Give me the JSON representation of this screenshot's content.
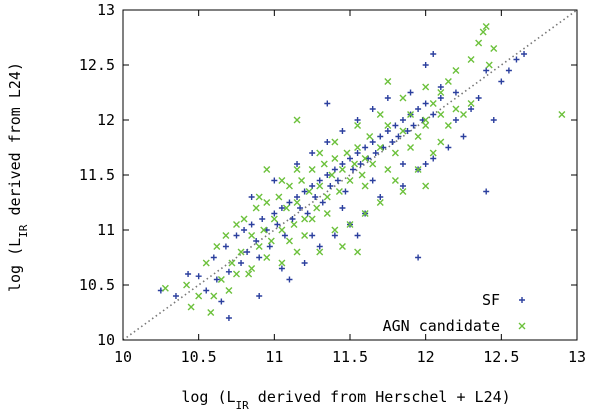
{
  "chart_data": {
    "type": "scatter",
    "title": "",
    "xlabel": {
      "pre": "log (L",
      "sub": "IR",
      "post": " derived from Herschel + L24)"
    },
    "ylabel": {
      "pre": "log (L",
      "sub": "IR",
      "post": " derived from L24)"
    },
    "xlim": [
      10,
      13
    ],
    "ylim": [
      10,
      13
    ],
    "xticks": [
      "10",
      "10.5",
      "11",
      "11.5",
      "12",
      "12.5",
      "13"
    ],
    "yticks": [
      "10",
      "10.5",
      "11",
      "11.5",
      "12",
      "12.5",
      "13"
    ],
    "grid": false,
    "legend_position": "bottom-right",
    "reference_line": {
      "style": "dotted",
      "from": [
        10,
        10
      ],
      "to": [
        13,
        13
      ],
      "color": "#777777"
    },
    "series": [
      {
        "name": "SF",
        "marker": "plus",
        "color": "#2b3f9e",
        "points": [
          [
            10.43,
            10.6
          ],
          [
            10.5,
            10.58
          ],
          [
            10.55,
            10.45
          ],
          [
            10.6,
            10.75
          ],
          [
            10.62,
            10.55
          ],
          [
            10.68,
            10.85
          ],
          [
            10.7,
            10.62
          ],
          [
            10.75,
            10.95
          ],
          [
            10.78,
            10.7
          ],
          [
            10.8,
            11.0
          ],
          [
            10.82,
            10.8
          ],
          [
            10.85,
            11.05
          ],
          [
            10.88,
            10.9
          ],
          [
            10.9,
            10.75
          ],
          [
            10.92,
            11.1
          ],
          [
            10.95,
            11.0
          ],
          [
            10.97,
            10.85
          ],
          [
            11.0,
            11.15
          ],
          [
            11.02,
            11.05
          ],
          [
            11.05,
            11.2
          ],
          [
            11.07,
            10.95
          ],
          [
            11.1,
            11.25
          ],
          [
            11.12,
            11.1
          ],
          [
            11.15,
            11.3
          ],
          [
            11.17,
            11.2
          ],
          [
            11.2,
            11.35
          ],
          [
            11.22,
            11.15
          ],
          [
            11.25,
            11.4
          ],
          [
            11.27,
            11.3
          ],
          [
            11.3,
            11.45
          ],
          [
            11.32,
            11.25
          ],
          [
            11.35,
            11.5
          ],
          [
            11.37,
            11.4
          ],
          [
            11.4,
            11.55
          ],
          [
            11.42,
            11.45
          ],
          [
            11.45,
            11.6
          ],
          [
            11.47,
            11.35
          ],
          [
            11.5,
            11.65
          ],
          [
            11.52,
            11.55
          ],
          [
            11.55,
            11.7
          ],
          [
            11.57,
            11.6
          ],
          [
            11.6,
            11.75
          ],
          [
            11.62,
            11.65
          ],
          [
            11.65,
            11.8
          ],
          [
            11.67,
            11.7
          ],
          [
            11.7,
            11.85
          ],
          [
            11.72,
            11.75
          ],
          [
            11.75,
            11.9
          ],
          [
            11.78,
            11.8
          ],
          [
            11.8,
            11.95
          ],
          [
            11.82,
            11.85
          ],
          [
            11.85,
            12.0
          ],
          [
            11.88,
            11.9
          ],
          [
            11.9,
            12.05
          ],
          [
            11.92,
            11.95
          ],
          [
            11.95,
            12.1
          ],
          [
            11.98,
            12.0
          ],
          [
            12.0,
            12.15
          ],
          [
            12.05,
            12.05
          ],
          [
            12.1,
            12.2
          ],
          [
            11.1,
            10.55
          ],
          [
            11.2,
            10.7
          ],
          [
            11.3,
            10.85
          ],
          [
            11.4,
            10.95
          ],
          [
            11.5,
            11.05
          ],
          [
            11.6,
            11.15
          ],
          [
            11.7,
            11.3
          ],
          [
            11.85,
            11.4
          ],
          [
            11.95,
            11.55
          ],
          [
            12.05,
            11.65
          ],
          [
            12.15,
            11.75
          ],
          [
            12.25,
            11.85
          ],
          [
            12.4,
            11.35
          ],
          [
            12.45,
            12.0
          ],
          [
            12.55,
            12.45
          ],
          [
            12.6,
            12.55
          ],
          [
            12.65,
            12.6
          ],
          [
            12.4,
            12.45
          ],
          [
            12.2,
            12.25
          ],
          [
            12.1,
            12.3
          ],
          [
            10.85,
            11.3
          ],
          [
            11.0,
            11.45
          ],
          [
            11.15,
            11.6
          ],
          [
            11.25,
            11.7
          ],
          [
            11.35,
            11.8
          ],
          [
            11.45,
            11.9
          ],
          [
            11.55,
            12.0
          ],
          [
            11.65,
            12.1
          ],
          [
            11.75,
            12.2
          ],
          [
            11.9,
            12.25
          ],
          [
            12.0,
            12.5
          ],
          [
            12.05,
            12.6
          ],
          [
            11.35,
            12.15
          ],
          [
            10.65,
            10.35
          ],
          [
            10.7,
            10.2
          ],
          [
            10.9,
            10.4
          ],
          [
            11.05,
            10.65
          ],
          [
            11.55,
            10.95
          ],
          [
            11.95,
            10.75
          ],
          [
            12.0,
            11.6
          ],
          [
            10.25,
            10.45
          ],
          [
            10.35,
            10.4
          ],
          [
            11.25,
            10.95
          ],
          [
            11.45,
            11.2
          ],
          [
            11.65,
            11.45
          ],
          [
            11.85,
            11.6
          ],
          [
            12.2,
            12.0
          ],
          [
            12.3,
            12.1
          ],
          [
            12.35,
            12.2
          ],
          [
            12.5,
            12.35
          ]
        ]
      },
      {
        "name": "AGN candidate",
        "marker": "cross",
        "color": "#6cc13c",
        "points": [
          [
            10.28,
            10.47
          ],
          [
            10.42,
            10.5
          ],
          [
            10.5,
            10.4
          ],
          [
            10.55,
            10.7
          ],
          [
            10.58,
            10.25
          ],
          [
            10.62,
            10.85
          ],
          [
            10.65,
            10.55
          ],
          [
            10.68,
            10.95
          ],
          [
            10.72,
            10.7
          ],
          [
            10.75,
            11.05
          ],
          [
            10.78,
            10.8
          ],
          [
            10.8,
            11.1
          ],
          [
            10.83,
            10.6
          ],
          [
            10.85,
            10.95
          ],
          [
            10.88,
            11.2
          ],
          [
            10.9,
            10.85
          ],
          [
            10.93,
            11.0
          ],
          [
            10.95,
            11.25
          ],
          [
            10.98,
            10.9
          ],
          [
            11.0,
            11.1
          ],
          [
            11.03,
            11.3
          ],
          [
            11.05,
            11.0
          ],
          [
            11.08,
            11.2
          ],
          [
            11.1,
            11.4
          ],
          [
            11.13,
            11.05
          ],
          [
            11.15,
            11.25
          ],
          [
            11.18,
            11.45
          ],
          [
            11.2,
            11.1
          ],
          [
            11.23,
            11.35
          ],
          [
            11.25,
            11.55
          ],
          [
            11.28,
            11.2
          ],
          [
            11.3,
            11.4
          ],
          [
            11.33,
            11.6
          ],
          [
            11.35,
            11.3
          ],
          [
            11.38,
            11.5
          ],
          [
            11.4,
            11.65
          ],
          [
            11.43,
            11.35
          ],
          [
            11.45,
            11.55
          ],
          [
            11.48,
            11.7
          ],
          [
            11.5,
            11.45
          ],
          [
            11.53,
            11.6
          ],
          [
            11.55,
            11.75
          ],
          [
            11.58,
            11.5
          ],
          [
            11.6,
            11.65
          ],
          [
            11.63,
            11.85
          ],
          [
            11.65,
            11.6
          ],
          [
            11.7,
            11.75
          ],
          [
            11.75,
            11.95
          ],
          [
            11.8,
            11.7
          ],
          [
            11.85,
            11.9
          ],
          [
            11.9,
            12.05
          ],
          [
            11.95,
            11.85
          ],
          [
            12.0,
            12.0
          ],
          [
            12.05,
            12.15
          ],
          [
            12.1,
            12.25
          ],
          [
            12.15,
            12.35
          ],
          [
            12.2,
            12.45
          ],
          [
            12.3,
            12.55
          ],
          [
            12.35,
            12.7
          ],
          [
            12.4,
            12.85
          ],
          [
            12.45,
            12.65
          ],
          [
            12.42,
            12.5
          ],
          [
            12.38,
            12.8
          ],
          [
            12.9,
            12.05
          ],
          [
            11.75,
            12.35
          ],
          [
            11.15,
            12.0
          ],
          [
            10.95,
            11.55
          ],
          [
            11.2,
            10.95
          ],
          [
            11.3,
            10.8
          ],
          [
            11.15,
            10.8
          ],
          [
            11.45,
            10.85
          ],
          [
            11.55,
            10.8
          ],
          [
            11.5,
            11.05
          ],
          [
            11.6,
            11.15
          ],
          [
            11.7,
            11.25
          ],
          [
            11.8,
            11.45
          ],
          [
            11.85,
            11.35
          ],
          [
            11.95,
            11.55
          ],
          [
            12.0,
            11.4
          ],
          [
            12.05,
            11.7
          ],
          [
            12.1,
            11.8
          ],
          [
            12.15,
            11.95
          ],
          [
            12.2,
            12.1
          ],
          [
            12.25,
            12.05
          ],
          [
            12.3,
            12.15
          ],
          [
            11.4,
            11.0
          ],
          [
            11.25,
            11.1
          ],
          [
            11.1,
            10.9
          ],
          [
            10.85,
            10.65
          ],
          [
            10.7,
            10.45
          ],
          [
            10.6,
            10.4
          ],
          [
            10.45,
            10.3
          ],
          [
            10.75,
            10.6
          ],
          [
            10.95,
            10.75
          ],
          [
            11.05,
            10.7
          ],
          [
            11.35,
            11.15
          ],
          [
            11.6,
            11.4
          ],
          [
            11.75,
            11.55
          ],
          [
            11.9,
            11.75
          ],
          [
            12.0,
            11.95
          ],
          [
            12.1,
            12.05
          ],
          [
            12.0,
            12.3
          ],
          [
            11.85,
            12.2
          ],
          [
            11.7,
            12.05
          ],
          [
            11.55,
            11.95
          ],
          [
            11.4,
            11.8
          ],
          [
            11.3,
            11.7
          ],
          [
            11.15,
            11.55
          ],
          [
            11.05,
            11.45
          ],
          [
            10.9,
            11.3
          ]
        ]
      }
    ]
  }
}
